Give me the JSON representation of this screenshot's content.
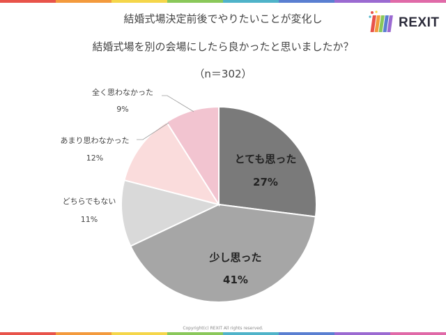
{
  "header": {
    "title_line1": "結婚式場決定前後でやりたいことが変化し",
    "title_line2": "結婚式場を別の会場にしたら良かったと思いましたか？",
    "title_line3": "（n＝302）"
  },
  "logo": {
    "text": "REXIT"
  },
  "footer": {
    "copyright": "Copyright(c) REXIT All rights reserved."
  },
  "stripe_colors": [
    "#e8534a",
    "#f39a3d",
    "#f5d64a",
    "#8ac85a",
    "#4fb3c9",
    "#5a7fd1",
    "#9b6ad1",
    "#e06aa8"
  ],
  "chart_data": {
    "type": "pie",
    "slices": [
      {
        "label": "とても思った",
        "value": 27,
        "pct_label": "27%",
        "color": "#7a7a7a",
        "label_position": "inside"
      },
      {
        "label": "少し思った",
        "value": 41,
        "pct_label": "41%",
        "color": "#a6a6a6",
        "label_position": "inside"
      },
      {
        "label": "どちらでもない",
        "value": 11,
        "pct_label": "11%",
        "color": "#d9d9d9",
        "label_position": "outside"
      },
      {
        "label": "あまり思わなかった",
        "value": 12,
        "pct_label": "12%",
        "color": "#fadcdc",
        "label_position": "outside"
      },
      {
        "label": "全く思わなかった",
        "value": 9,
        "pct_label": "9%",
        "color": "#f2c4d0",
        "label_position": "outside"
      }
    ],
    "start": "12 o'clock",
    "direction": "clockwise"
  }
}
